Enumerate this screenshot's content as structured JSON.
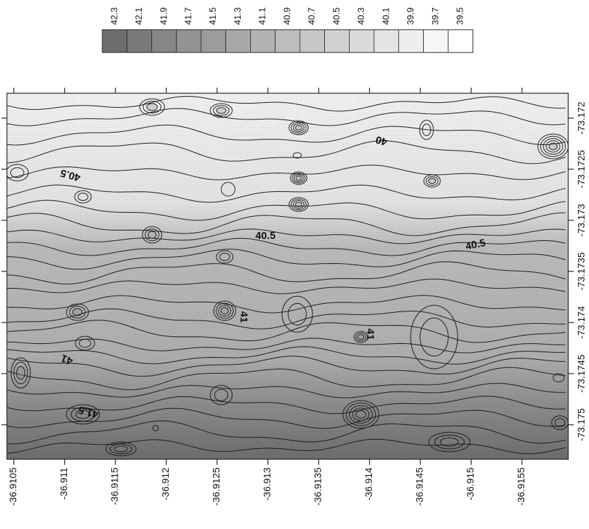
{
  "chart_data": {
    "type": "heatmap",
    "title": "",
    "x_axis": {
      "ticks": [
        "-36.9105",
        "-36.911",
        "-36.9115",
        "-36.912",
        "-36.9125",
        "-36.913",
        "-36.9135",
        "-36.914",
        "-36.9145",
        "-36.915",
        "-36.9155"
      ],
      "range": [
        -36.9155,
        -36.9105
      ]
    },
    "y_axis": {
      "ticks": [
        "-73.175",
        "-73.1745",
        "-73.174",
        "-73.1735",
        "-73.173",
        "-73.1725",
        "-73.172"
      ],
      "range": [
        -73.1755,
        -73.1718
      ]
    },
    "legend": {
      "placement": "top",
      "levels": [
        "42.3",
        "42.1",
        "41.9",
        "41.7",
        "41.5",
        "41.3",
        "41.1",
        "40.9",
        "40.7",
        "40.5",
        "40.3",
        "40.1",
        "39.9",
        "39.7",
        "39.5"
      ],
      "colors": [
        "#6e6e6e",
        "#7a7a7a",
        "#868686",
        "#929292",
        "#9c9c9c",
        "#a8a8a8",
        "#b2b2b2",
        "#bdbdbd",
        "#c7c7c7",
        "#d1d1d1",
        "#dbdbdb",
        "#e4e4e4",
        "#eeeeee",
        "#f6f6f6",
        "#ffffff"
      ]
    },
    "contour_labels": [
      "40.5",
      "40",
      "40.5",
      "40.5",
      "41",
      "41",
      "41",
      "41.5"
    ],
    "grid": false,
    "colorscale": "grayscale"
  }
}
